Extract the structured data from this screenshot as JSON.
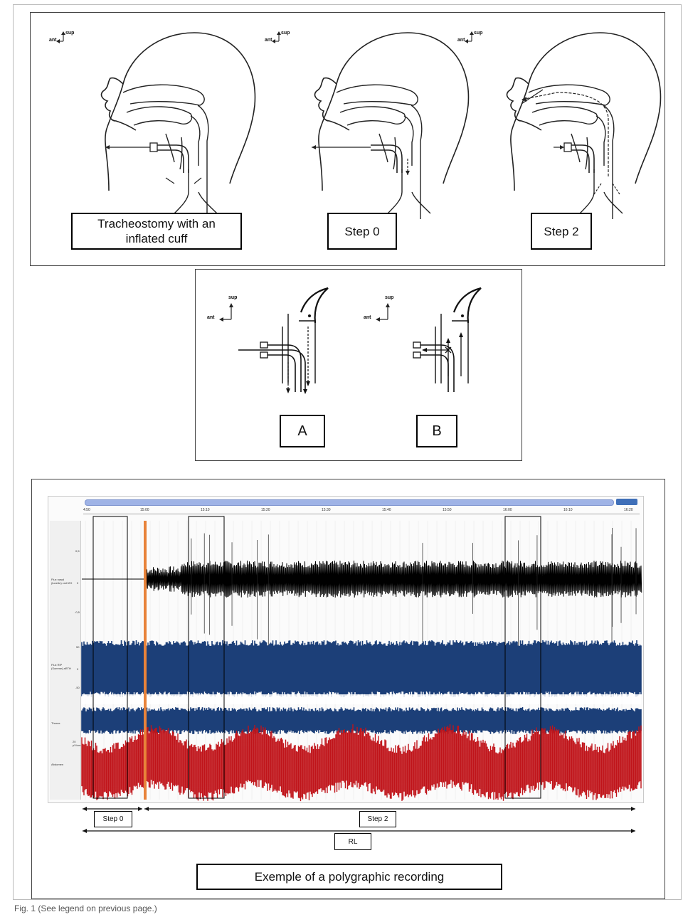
{
  "panel_top": {
    "axis": {
      "sup": "sup",
      "ant": "ant"
    },
    "labels": {
      "trach_line1": "Tracheostomy with an",
      "trach_line2": "inflated cuff",
      "step0": "Step 0",
      "step2": "Step 2"
    }
  },
  "panel_mid": {
    "axis": {
      "sup": "sup",
      "ant": "ant"
    },
    "labels": {
      "a": "A",
      "b": "B"
    }
  },
  "panel_bottom": {
    "time_ticks": [
      "4:50",
      "15:00",
      "15:10",
      "15:20",
      "15:30",
      "15:40",
      "15:50",
      "16:00",
      "16:10",
      "16:20"
    ],
    "channels": {
      "ch1": "Flux nasal (lunette) cmH2O",
      "ch2": "Flux RIP (Somme) aRTH",
      "ch3": "Thorax",
      "ch4": "Abdomen"
    },
    "scale_ticks": {
      "pos": "0,5",
      "zero": "0",
      "neg": "-0,5",
      "p50": "50",
      "z2": "0",
      "n50": "-50",
      "u20": "20 µV/cm"
    },
    "labels": {
      "step0": "Step 0",
      "step2": "Step 2",
      "rl": "RL",
      "title": "Exemple of a polygraphic recording"
    }
  },
  "caption": "Fig. 1 (See legend on previous page.)",
  "colors": {
    "flow_black": "#000000",
    "rip_blue": "#1c3f78",
    "abdomen_red": "#c0141a",
    "marker_orange": "#e8833a",
    "timeline_bar": "#9fb3e6"
  }
}
